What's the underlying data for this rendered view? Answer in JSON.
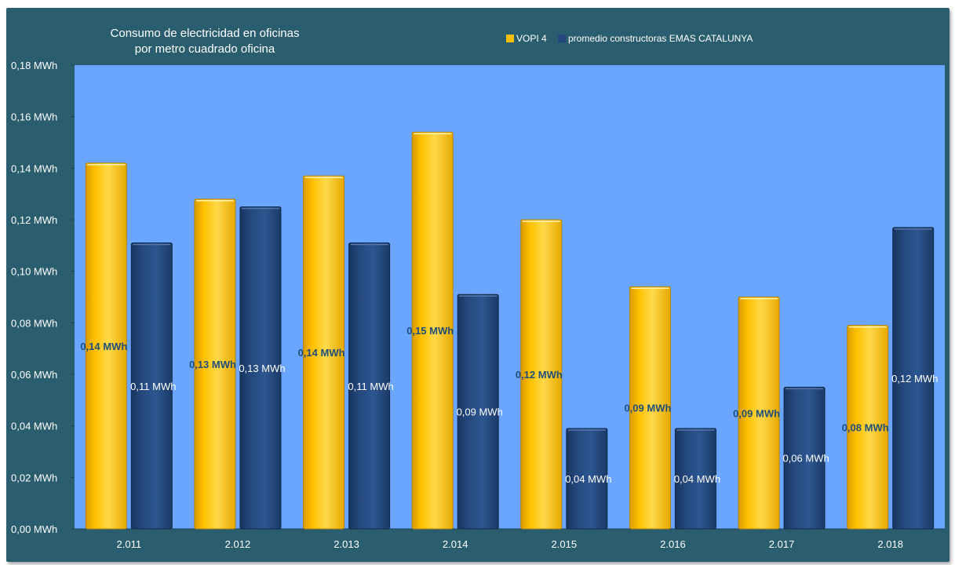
{
  "colors": {
    "frame": "#2a5e6e",
    "plot_background": "#6aa6ff",
    "series_a": "#ffc000",
    "series_b": "#24487d",
    "label_a": "#1f4e79",
    "label_b": "#ffffff"
  },
  "chart_data": {
    "type": "bar",
    "title": [
      "Consumo de electricidad en oficinas",
      "por  metro cuadrado oficina"
    ],
    "legend": {
      "placement": "top-center"
    },
    "categories": [
      "2.011",
      "2.012",
      "2.013",
      "2.014",
      "2.015",
      "2.016",
      "2.017",
      "2.018"
    ],
    "series": [
      {
        "name": "VOPI 4",
        "values": [
          0.142,
          0.128,
          0.137,
          0.154,
          0.12,
          0.094,
          0.09,
          0.079
        ],
        "labels": [
          "0,14 MWh",
          "0,13 MWh",
          "0,14 MWh",
          "0,15 MWh",
          "0,12 MWh",
          "0,09 MWh",
          "0,09 MWh",
          "0,08 MWh"
        ]
      },
      {
        "name": "promedio  constructoras EMAS  CATALUNYA",
        "values": [
          0.111,
          0.125,
          0.111,
          0.091,
          0.039,
          0.039,
          0.055,
          0.117
        ],
        "labels": [
          "0,11 MWh",
          "0,13 MWh",
          "0,11 MWh",
          "0,09 MWh",
          "0,04 MWh",
          "0,04 MWh",
          "0,06 MWh",
          "0,12 MWh"
        ]
      }
    ],
    "ylim": [
      0,
      0.18
    ],
    "yticks": [
      0,
      0.02,
      0.04,
      0.06,
      0.08,
      0.1,
      0.12,
      0.14,
      0.16,
      0.18
    ],
    "ytick_labels": [
      "0,00 MWh",
      "0,02 MWh",
      "0,04 MWh",
      "0,06 MWh",
      "0,08 MWh",
      "0,10 MWh",
      "0,12 MWh",
      "0,14 MWh",
      "0,16 MWh",
      "0,18 MWh"
    ],
    "grid": false
  }
}
